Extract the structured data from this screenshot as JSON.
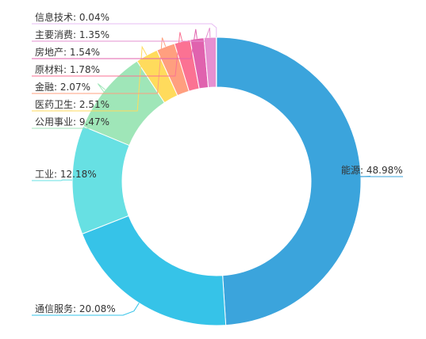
{
  "chart_data": {
    "type": "pie",
    "variant": "donut",
    "title": "",
    "legend": "none",
    "slices": [
      {
        "name": "能源",
        "value": 48.98,
        "label": "能源: 48.98%",
        "color": "#3ba4dc"
      },
      {
        "name": "通信服务",
        "value": 20.08,
        "label": "通信服务: 20.08%",
        "color": "#36c3e8"
      },
      {
        "name": "工业",
        "value": 12.18,
        "label": "工业: 12.18%",
        "color": "#67e0e3"
      },
      {
        "name": "公用事业",
        "value": 9.47,
        "label": "公用事业: 9.47%",
        "color": "#9fe6b8"
      },
      {
        "name": "医药卫生",
        "value": 2.51,
        "label": "医药卫生: 2.51%",
        "color": "#ffdb5c"
      },
      {
        "name": "金融",
        "value": 2.07,
        "label": "金融: 2.07%",
        "color": "#ff9f7f"
      },
      {
        "name": "原材料",
        "value": 1.78,
        "label": "原材料: 1.78%",
        "color": "#fb7293"
      },
      {
        "name": "房地产",
        "value": 1.54,
        "label": "房地产: 1.54%",
        "color": "#e062ae"
      },
      {
        "name": "主要消费",
        "value": 1.35,
        "label": "主要消费: 1.35%",
        "color": "#e690d1"
      },
      {
        "name": "信息技术",
        "value": 0.04,
        "label": "信息技术: 0.04%",
        "color": "#e7bcf3"
      }
    ]
  }
}
